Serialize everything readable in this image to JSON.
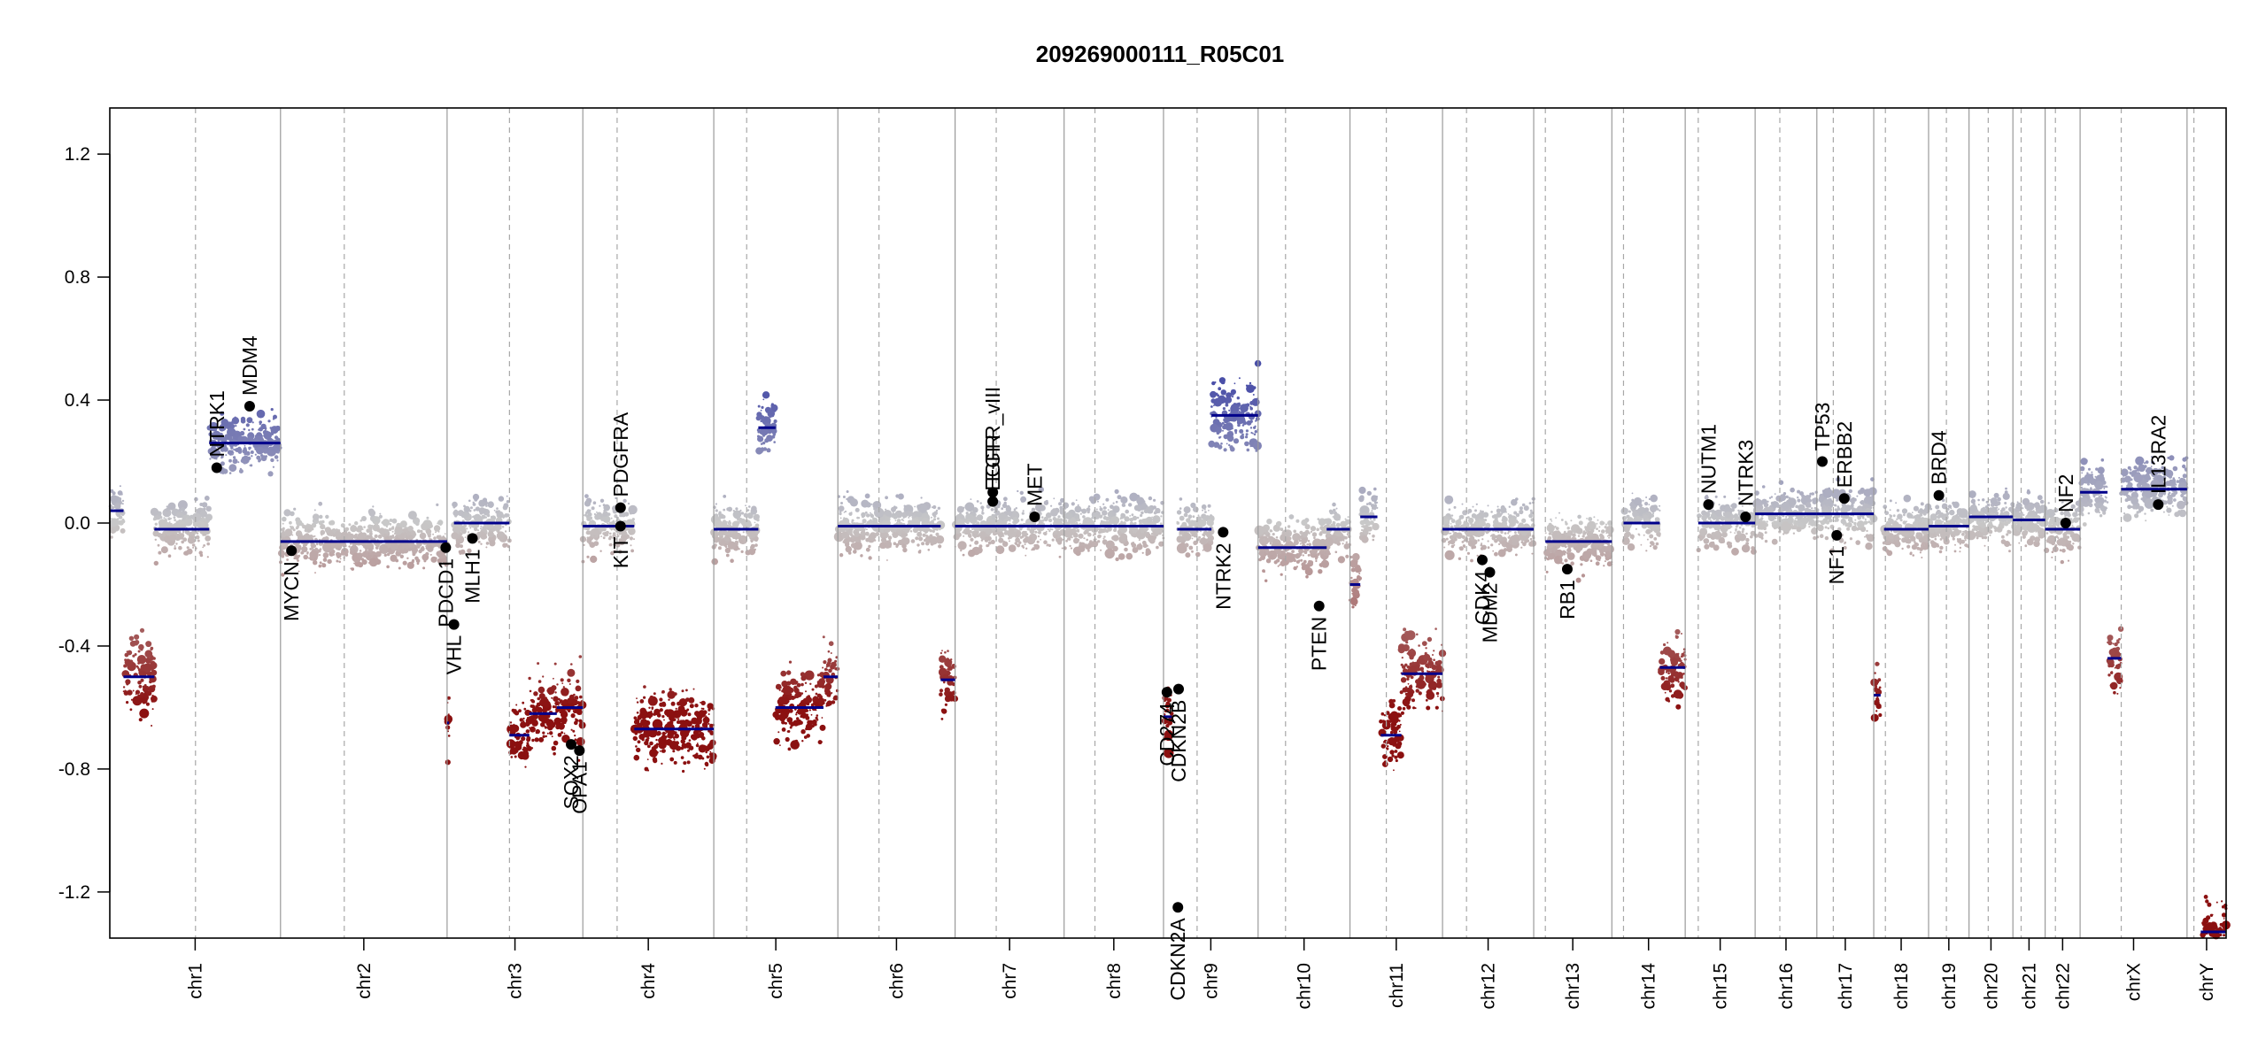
{
  "chart_data": {
    "type": "scatter",
    "title": "209269000111_R05C01",
    "xlabel": "",
    "ylabel": "",
    "ylim": [
      -1.35,
      1.35
    ],
    "yticks": [
      -1.2,
      -0.8,
      -0.4,
      0.0,
      0.4,
      0.8,
      1.2
    ],
    "ytick_labels": [
      "-1.2",
      "-0.8",
      "-0.4",
      "0.0",
      "0.4",
      "0.8",
      "1.2"
    ],
    "grid": false,
    "colors": {
      "gain": "#4a4fa8",
      "neutral": "#c8c8c8",
      "loss": "#8b1010",
      "segment": "#00008b",
      "border": "#000000"
    },
    "chromosomes": [
      {
        "name": "chr1",
        "length": 249,
        "centromere": 125
      },
      {
        "name": "chr2",
        "length": 243,
        "centromere": 93
      },
      {
        "name": "chr3",
        "length": 198,
        "centromere": 91
      },
      {
        "name": "chr4",
        "length": 191,
        "centromere": 50
      },
      {
        "name": "chr5",
        "length": 181,
        "centromere": 48
      },
      {
        "name": "chr6",
        "length": 171,
        "centromere": 60
      },
      {
        "name": "chr7",
        "length": 159,
        "centromere": 60
      },
      {
        "name": "chr8",
        "length": 145,
        "centromere": 45
      },
      {
        "name": "chr9",
        "length": 138,
        "centromere": 49
      },
      {
        "name": "chr10",
        "length": 134,
        "centromere": 40
      },
      {
        "name": "chr11",
        "length": 135,
        "centromere": 53
      },
      {
        "name": "chr12",
        "length": 133,
        "centromere": 35
      },
      {
        "name": "chr13",
        "length": 114,
        "centromere": 17
      },
      {
        "name": "chr14",
        "length": 107,
        "centromere": 17
      },
      {
        "name": "chr15",
        "length": 102,
        "centromere": 19
      },
      {
        "name": "chr16",
        "length": 90,
        "centromere": 36
      },
      {
        "name": "chr17",
        "length": 83,
        "centromere": 24
      },
      {
        "name": "chr18",
        "length": 80,
        "centromere": 17
      },
      {
        "name": "chr19",
        "length": 59,
        "centromere": 26
      },
      {
        "name": "chr20",
        "length": 64,
        "centromere": 28
      },
      {
        "name": "chr21",
        "length": 47,
        "centromere": 12
      },
      {
        "name": "chr22",
        "length": 51,
        "centromere": 15
      },
      {
        "name": "chrX",
        "length": 156,
        "centromere": 60
      },
      {
        "name": "chrY",
        "length": 57,
        "centromere": 10
      }
    ],
    "series": [
      {
        "type": "segments",
        "segments": [
          {
            "chr": "chr1",
            "start": 0,
            "end": 20,
            "value": 0.04
          },
          {
            "chr": "chr1",
            "start": 20,
            "end": 65,
            "value": -0.5
          },
          {
            "chr": "chr1",
            "start": 65,
            "end": 145,
            "value": -0.02
          },
          {
            "chr": "chr1",
            "start": 145,
            "end": 249,
            "value": 0.26
          },
          {
            "chr": "chr2",
            "start": 0,
            "end": 243,
            "value": -0.06
          },
          {
            "chr": "chr3",
            "start": 0,
            "end": 3,
            "value": -0.65
          },
          {
            "chr": "chr3",
            "start": 10,
            "end": 91,
            "value": 0.0
          },
          {
            "chr": "chr3",
            "start": 91,
            "end": 120,
            "value": -0.69
          },
          {
            "chr": "chr3",
            "start": 120,
            "end": 160,
            "value": -0.62
          },
          {
            "chr": "chr3",
            "start": 160,
            "end": 198,
            "value": -0.6
          },
          {
            "chr": "chr4",
            "start": 0,
            "end": 75,
            "value": -0.01
          },
          {
            "chr": "chr4",
            "start": 75,
            "end": 191,
            "value": -0.67
          },
          {
            "chr": "chr5",
            "start": 0,
            "end": 65,
            "value": -0.02
          },
          {
            "chr": "chr5",
            "start": 65,
            "end": 90,
            "value": 0.31
          },
          {
            "chr": "chr5",
            "start": 90,
            "end": 160,
            "value": -0.6
          },
          {
            "chr": "chr5",
            "start": 160,
            "end": 181,
            "value": -0.5
          },
          {
            "chr": "chr6",
            "start": 0,
            "end": 150,
            "value": -0.01
          },
          {
            "chr": "chr6",
            "start": 150,
            "end": 171,
            "value": -0.51
          },
          {
            "chr": "chr7",
            "start": 0,
            "end": 159,
            "value": -0.01
          },
          {
            "chr": "chr8",
            "start": 0,
            "end": 145,
            "value": -0.01
          },
          {
            "chr": "chr9",
            "start": 0,
            "end": 12,
            "value": -0.63
          },
          {
            "chr": "chr9",
            "start": 20,
            "end": 70,
            "value": -0.02
          },
          {
            "chr": "chr9",
            "start": 70,
            "end": 138,
            "value": 0.35
          },
          {
            "chr": "chr10",
            "start": 0,
            "end": 100,
            "value": -0.08
          },
          {
            "chr": "chr10",
            "start": 100,
            "end": 134,
            "value": -0.02
          },
          {
            "chr": "chr11",
            "start": 0,
            "end": 15,
            "value": -0.2
          },
          {
            "chr": "chr11",
            "start": 15,
            "end": 40,
            "value": 0.02
          },
          {
            "chr": "chr11",
            "start": 45,
            "end": 75,
            "value": -0.69
          },
          {
            "chr": "chr11",
            "start": 75,
            "end": 135,
            "value": -0.49
          },
          {
            "chr": "chr12",
            "start": 0,
            "end": 133,
            "value": -0.02
          },
          {
            "chr": "chr13",
            "start": 17,
            "end": 114,
            "value": -0.06
          },
          {
            "chr": "chr14",
            "start": 17,
            "end": 70,
            "value": 0.0
          },
          {
            "chr": "chr14",
            "start": 70,
            "end": 107,
            "value": -0.47
          },
          {
            "chr": "chr15",
            "start": 19,
            "end": 102,
            "value": 0.0
          },
          {
            "chr": "chr16",
            "start": 0,
            "end": 90,
            "value": 0.03
          },
          {
            "chr": "chr17",
            "start": 0,
            "end": 83,
            "value": 0.03
          },
          {
            "chr": "chr18",
            "start": 0,
            "end": 10,
            "value": -0.56
          },
          {
            "chr": "chr18",
            "start": 15,
            "end": 80,
            "value": -0.02
          },
          {
            "chr": "chr19",
            "start": 0,
            "end": 59,
            "value": -0.01
          },
          {
            "chr": "chr20",
            "start": 0,
            "end": 64,
            "value": 0.02
          },
          {
            "chr": "chr21",
            "start": 0,
            "end": 47,
            "value": 0.01
          },
          {
            "chr": "chr22",
            "start": 0,
            "end": 51,
            "value": -0.02
          },
          {
            "chr": "chrX",
            "start": 0,
            "end": 40,
            "value": 0.1
          },
          {
            "chr": "chrX",
            "start": 40,
            "end": 60,
            "value": -0.44
          },
          {
            "chr": "chrX",
            "start": 60,
            "end": 156,
            "value": 0.11
          },
          {
            "chr": "chrY",
            "start": 20,
            "end": 57,
            "value": -1.33
          }
        ]
      },
      {
        "type": "genes",
        "points": [
          {
            "gene": "NTRK1",
            "chr": "chr1",
            "pos": 156,
            "value": 0.18
          },
          {
            "gene": "MDM4",
            "chr": "chr1",
            "pos": 204,
            "value": 0.38
          },
          {
            "gene": "MYCN",
            "chr": "chr2",
            "pos": 16,
            "value": -0.09
          },
          {
            "gene": "VHL",
            "chr": "chr3",
            "pos": 10,
            "value": -0.33
          },
          {
            "gene": "PDCD1",
            "chr": "chr2",
            "pos": 241,
            "value": -0.08
          },
          {
            "gene": "MLH1",
            "chr": "chr3",
            "pos": 37,
            "value": -0.05
          },
          {
            "gene": "SOX2",
            "chr": "chr3",
            "pos": 181,
            "value": -0.72
          },
          {
            "gene": "OPA1",
            "chr": "chr3",
            "pos": 193,
            "value": -0.74
          },
          {
            "gene": "KIT",
            "chr": "chr4",
            "pos": 55,
            "value": -0.01
          },
          {
            "gene": "PDGFRA",
            "chr": "chr4",
            "pos": 55,
            "value": 0.05
          },
          {
            "gene": "EGFR",
            "chr": "chr7",
            "pos": 55,
            "value": 0.07
          },
          {
            "gene": "EGFR_vIII",
            "chr": "chr7",
            "pos": 55,
            "value": 0.1
          },
          {
            "gene": "MET",
            "chr": "chr7",
            "pos": 116,
            "value": 0.02
          },
          {
            "gene": "CD274",
            "chr": "chr9",
            "pos": 5,
            "value": -0.55
          },
          {
            "gene": "CDKN2A",
            "chr": "chr9",
            "pos": 21,
            "value": -1.25
          },
          {
            "gene": "CDKN2B",
            "chr": "chr9",
            "pos": 22,
            "value": -0.54
          },
          {
            "gene": "NTRK2",
            "chr": "chr9",
            "pos": 87,
            "value": -0.03
          },
          {
            "gene": "PTEN",
            "chr": "chr10",
            "pos": 89,
            "value": -0.27
          },
          {
            "gene": "CDK4",
            "chr": "chr12",
            "pos": 58,
            "value": -0.12
          },
          {
            "gene": "MDM2",
            "chr": "chr12",
            "pos": 69,
            "value": -0.16
          },
          {
            "gene": "RB1",
            "chr": "chr13",
            "pos": 49,
            "value": -0.15
          },
          {
            "gene": "NUTM1",
            "chr": "chr15",
            "pos": 34,
            "value": 0.06
          },
          {
            "gene": "NTRK3",
            "chr": "chr15",
            "pos": 88,
            "value": 0.02
          },
          {
            "gene": "TP53",
            "chr": "chr17",
            "pos": 8,
            "value": 0.2
          },
          {
            "gene": "NF1",
            "chr": "chr17",
            "pos": 29,
            "value": -0.04
          },
          {
            "gene": "ERBB2",
            "chr": "chr17",
            "pos": 40,
            "value": 0.08
          },
          {
            "gene": "BRD4",
            "chr": "chr19",
            "pos": 15,
            "value": 0.09
          },
          {
            "gene": "NF2",
            "chr": "chr22",
            "pos": 30,
            "value": 0.0
          },
          {
            "gene": "IL13RA2",
            "chr": "chrX",
            "pos": 114,
            "value": 0.06
          }
        ]
      }
    ]
  }
}
